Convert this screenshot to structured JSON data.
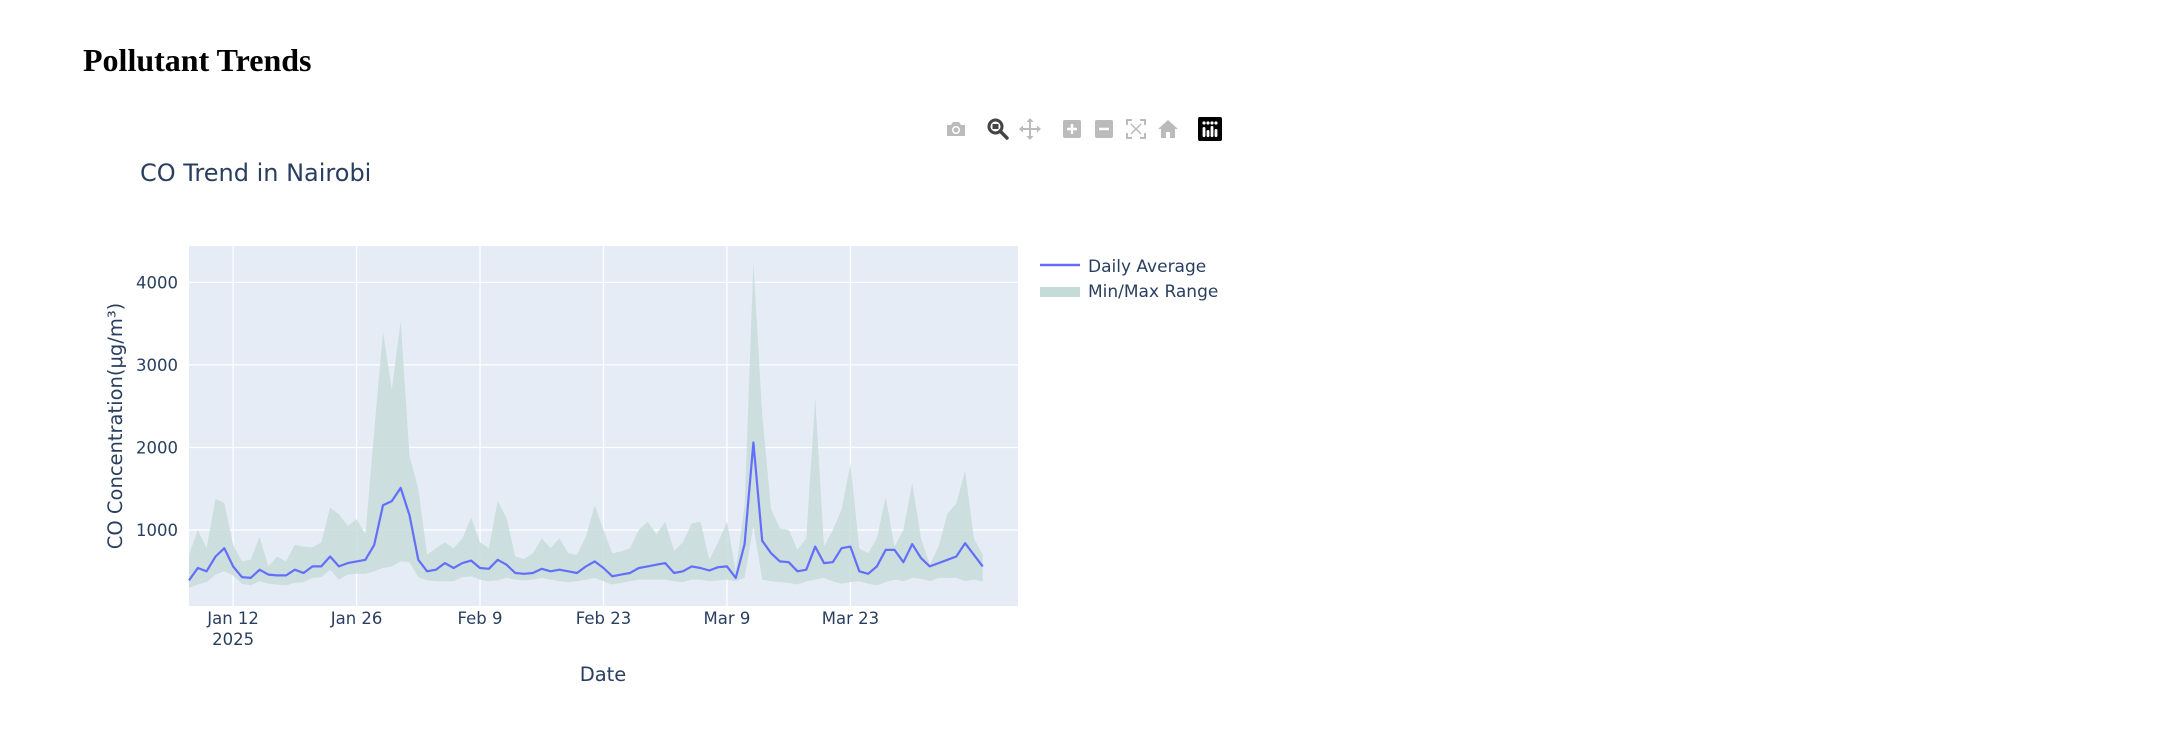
{
  "page": {
    "heading": "Pollutant Trends"
  },
  "modebar": {
    "buttons": [
      {
        "name": "camera-icon",
        "title": "Download plot as a png"
      },
      {
        "name": "zoom-icon",
        "title": "Zoom"
      },
      {
        "name": "pan-icon",
        "title": "Pan"
      },
      {
        "name": "zoom-in-icon",
        "title": "Zoom in"
      },
      {
        "name": "zoom-out-icon",
        "title": "Zoom out"
      },
      {
        "name": "autoscale-icon",
        "title": "Autoscale"
      },
      {
        "name": "reset-axes-icon",
        "title": "Reset axes"
      },
      {
        "name": "plotly-logo-icon",
        "title": "Produced with Plotly"
      }
    ]
  },
  "chart_data": {
    "type": "line",
    "title": "CO Trend in Nairobi",
    "xlabel": "Date",
    "ylabel": "CO Concentration(μg/m³)",
    "x_start": "2025-01-07",
    "x_end": "2025-04-11",
    "xlim": [
      "2025-01-07",
      "2025-04-11"
    ],
    "ylim": [
      80,
      4440
    ],
    "x_ticks": [
      {
        "date": "2025-01-12",
        "label": "Jan 12",
        "sublabel": "2025"
      },
      {
        "date": "2025-01-26",
        "label": "Jan 26",
        "sublabel": ""
      },
      {
        "date": "2025-02-09",
        "label": "Feb 9",
        "sublabel": ""
      },
      {
        "date": "2025-02-23",
        "label": "Feb 23",
        "sublabel": ""
      },
      {
        "date": "2025-03-09",
        "label": "Mar 9",
        "sublabel": ""
      },
      {
        "date": "2025-03-23",
        "label": "Mar 23",
        "sublabel": ""
      }
    ],
    "y_ticks": [
      1000,
      2000,
      3000,
      4000
    ],
    "grid": true,
    "legend_position": "right",
    "series": [
      {
        "name": "Daily Average",
        "kind": "line",
        "color": "#636efa",
        "values": [
          390,
          540,
          500,
          680,
          780,
          560,
          430,
          420,
          520,
          460,
          450,
          450,
          520,
          480,
          560,
          560,
          680,
          560,
          600,
          620,
          640,
          820,
          1300,
          1350,
          1510,
          1180,
          640,
          500,
          520,
          600,
          540,
          600,
          630,
          540,
          530,
          640,
          580,
          480,
          470,
          480,
          530,
          500,
          520,
          500,
          480,
          560,
          620,
          540,
          440,
          460,
          480,
          540,
          560,
          580,
          600,
          480,
          500,
          560,
          540,
          510,
          550,
          560,
          420,
          830,
          2060,
          870,
          720,
          620,
          610,
          500,
          520,
          800,
          600,
          610,
          780,
          800,
          500,
          470,
          560,
          760,
          760,
          610,
          830,
          660,
          560,
          600,
          640,
          680,
          840,
          700,
          560
        ]
      },
      {
        "name": "Min/Max Range",
        "kind": "band",
        "color": "#c5dbd7",
        "opacity": 0.8,
        "min": [
          300,
          340,
          370,
          460,
          500,
          450,
          350,
          330,
          380,
          350,
          340,
          330,
          360,
          370,
          420,
          430,
          520,
          400,
          460,
          470,
          470,
          500,
          540,
          560,
          620,
          610,
          430,
          390,
          380,
          380,
          380,
          430,
          440,
          400,
          380,
          390,
          420,
          400,
          390,
          400,
          420,
          400,
          380,
          370,
          380,
          400,
          420,
          380,
          340,
          360,
          380,
          400,
          400,
          400,
          400,
          380,
          370,
          400,
          400,
          380,
          390,
          400,
          380,
          420,
          1050,
          400,
          380,
          370,
          360,
          340,
          380,
          400,
          420,
          380,
          350,
          370,
          380,
          350,
          330,
          370,
          400,
          380,
          420,
          410,
          380,
          420,
          420,
          420,
          380,
          400,
          380
        ]
      },
      {
        "name": "Min/Max Range (upper)",
        "kind": "band-upper",
        "values": [
          700,
          1000,
          780,
          1380,
          1330,
          820,
          620,
          640,
          920,
          560,
          680,
          620,
          820,
          800,
          790,
          850,
          1270,
          1190,
          1050,
          1130,
          950,
          2200,
          3400,
          2700,
          3530,
          1900,
          1500,
          700,
          780,
          850,
          780,
          900,
          1150,
          850,
          780,
          1350,
          1150,
          680,
          650,
          720,
          900,
          780,
          900,
          720,
          700,
          920,
          1300,
          1000,
          720,
          740,
          780,
          1000,
          1100,
          950,
          1100,
          750,
          850,
          1080,
          1100,
          640,
          850,
          1100,
          500,
          1300,
          4230,
          2400,
          1250,
          1020,
          1000,
          760,
          900,
          2600,
          800,
          1000,
          1250,
          1800,
          780,
          720,
          900,
          1400,
          800,
          1000,
          1570,
          900,
          580,
          800,
          1200,
          1320,
          1720,
          900,
          700
        ]
      }
    ]
  }
}
